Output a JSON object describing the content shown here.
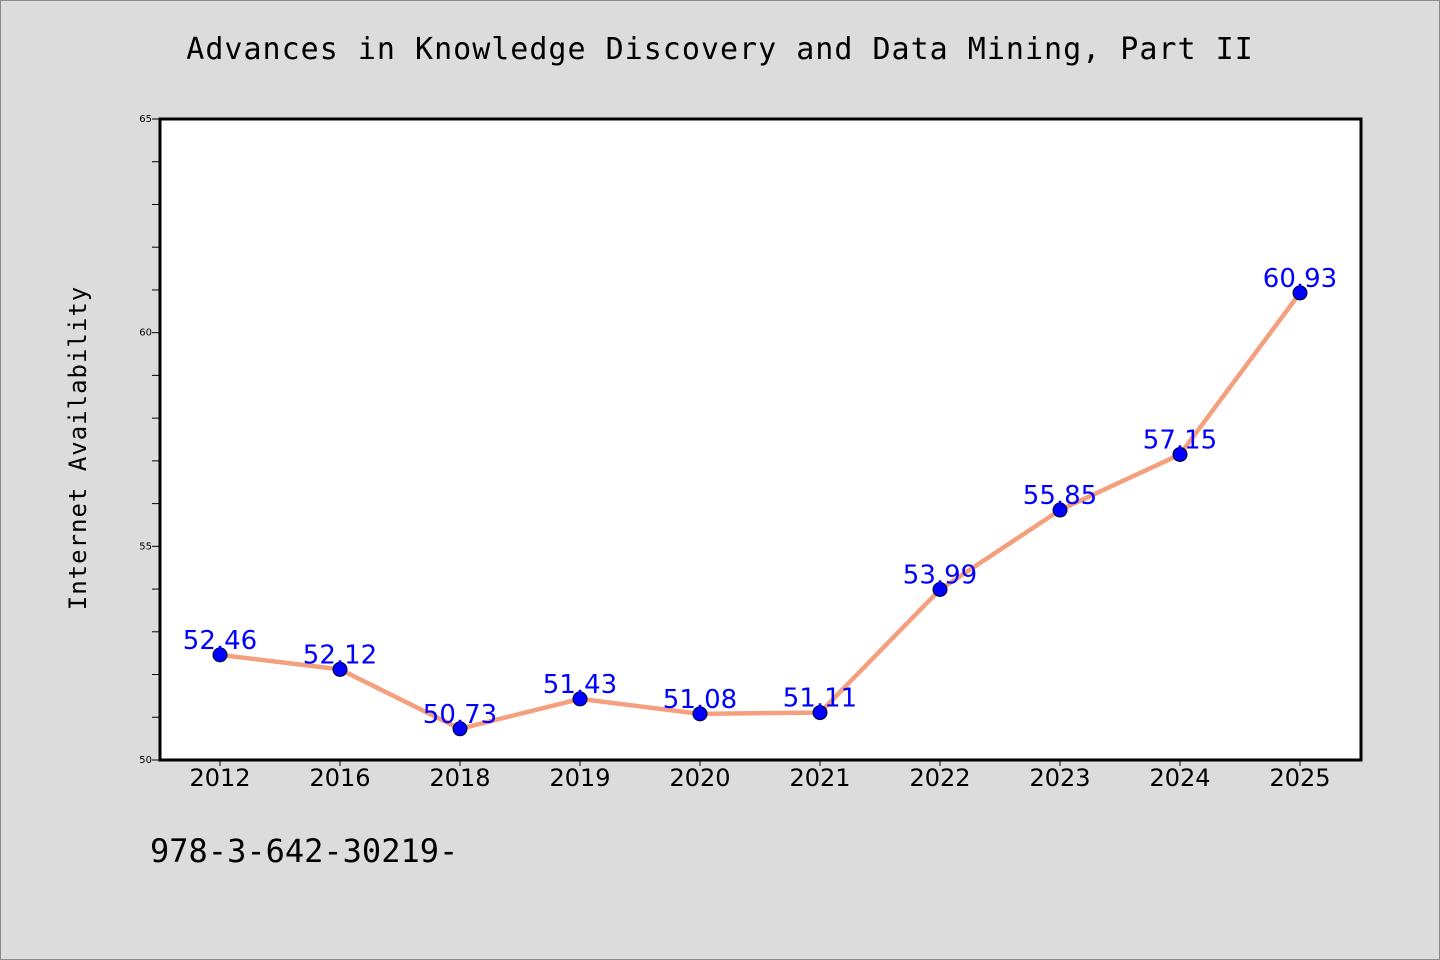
{
  "page": {
    "background": "#dcdcdc",
    "footer_text": "978-3-642-30219-"
  },
  "chart_data": {
    "type": "line",
    "title": "Advances in Knowledge Discovery and Data Mining, Part II",
    "xlabel": "",
    "ylabel": "Internet Availability",
    "categories": [
      "2012",
      "2016",
      "2018",
      "2019",
      "2020",
      "2021",
      "2022",
      "2023",
      "2024",
      "2025"
    ],
    "series": [
      {
        "values": [
          52.46,
          52.12,
          50.73,
          51.43,
          51.08,
          51.11,
          53.99,
          55.85,
          57.15,
          60.93
        ],
        "data_labels": [
          "52.46",
          "52.12",
          "50.73",
          "51.43",
          "51.08",
          "51.11",
          "53.99",
          "55.85",
          "57.15",
          "60.93"
        ],
        "line_color": "#f4a07e",
        "marker_color": "#0000ff",
        "label_color": "#0000ff"
      }
    ],
    "ylim": [
      50,
      65
    ],
    "yticks": [
      50,
      55,
      60,
      65
    ],
    "ytick_labels": [
      "50",
      "55",
      "60",
      "65"
    ],
    "grid": false,
    "legend": "none",
    "plot_background": "#ffffff"
  }
}
